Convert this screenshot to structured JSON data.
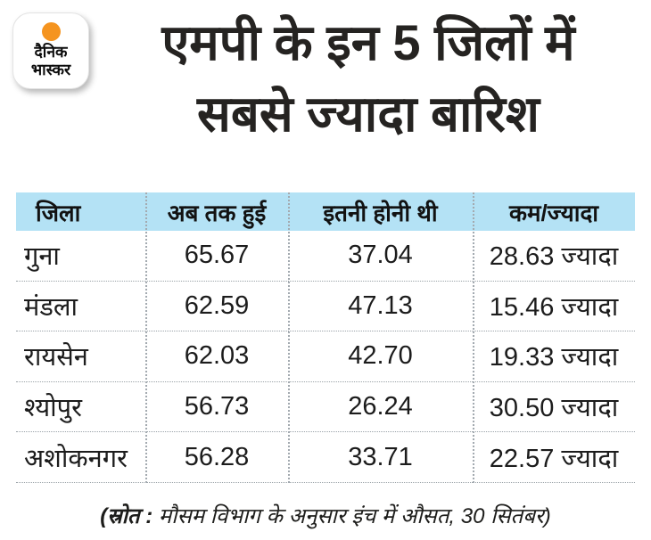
{
  "chart_data": {
    "type": "table",
    "title": "एमपी के इन 5 जिलों में सबसे ज्यादा बारिश",
    "columns": [
      "जिला",
      "अब तक हुई",
      "इतनी होनी थी",
      "कम/ज्यादा"
    ],
    "units": "इंच (inches)",
    "rows": [
      {
        "district": "गुना",
        "actual": 65.67,
        "expected": 37.04,
        "difference": 28.63,
        "direction": "ज्यादा"
      },
      {
        "district": "मंडला",
        "actual": 62.59,
        "expected": 47.13,
        "difference": 15.46,
        "direction": "ज्यादा"
      },
      {
        "district": "रायसेन",
        "actual": 62.03,
        "expected": 42.7,
        "difference": 19.33,
        "direction": "ज्यादा"
      },
      {
        "district": "श्योपुर",
        "actual": 56.73,
        "expected": 26.24,
        "difference": 30.5,
        "direction": "ज्यादा"
      },
      {
        "district": "अशोकनगर",
        "actual": 56.28,
        "expected": 33.71,
        "difference": 22.57,
        "direction": "ज्यादा"
      }
    ],
    "source_note": "(स्रोत : मौसम विभाग के अनुसार इंच में औसत, 30 सितंबर)"
  },
  "logo": {
    "line1": "दैनिक",
    "line2": "भास्कर"
  },
  "title": {
    "line1": "एमपी के इन 5 जिलों में",
    "line2": "सबसे ज्यादा बारिश"
  },
  "table": {
    "headers": [
      "जिला",
      "अब तक हुई",
      "इतनी होनी थी",
      "कम/ज्यादा"
    ],
    "rows": [
      [
        "गुना",
        "65.67",
        "37.04",
        "28.63 ज्यादा"
      ],
      [
        "मंडला",
        "62.59",
        "47.13",
        "15.46 ज्यादा"
      ],
      [
        "रायसेन",
        "62.03",
        "42.70",
        "19.33 ज्यादा"
      ],
      [
        "श्योपुर",
        "56.73",
        "26.24",
        "30.50 ज्यादा"
      ],
      [
        "अशोकनगर",
        "56.28",
        "33.71",
        "22.57 ज्यादा"
      ]
    ]
  },
  "footer": {
    "label": "(स्रोत :",
    "text": "मौसम विभाग के अनुसार इंच में औसत, 30 सितंबर)"
  },
  "colors": {
    "header_bg": "#b4e2f5",
    "logo_orange": "#f5941f",
    "text": "#1d1d1b",
    "separator": "#a3aab0"
  }
}
